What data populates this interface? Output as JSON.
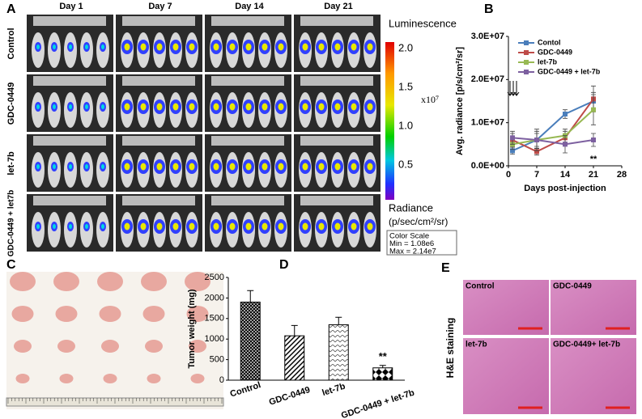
{
  "panel_a": {
    "label": "A",
    "columns": [
      "Day 1",
      "Day 7",
      "Day 14",
      "Day 21"
    ],
    "rows": [
      "Control",
      "GDC-0449",
      "let-7b",
      "GDC-0449 + let7b"
    ],
    "colorbar_title": "Luminescence",
    "colorbar_ticks": [
      "2.0",
      "1.5",
      "1.0",
      "0.5"
    ],
    "multiplier": "x10⁷",
    "unit_title": "Radiance",
    "unit": "(p/sec/cm²/sr)",
    "scale": [
      "Color Scale",
      "Min = 1.08e6",
      "Max = 2.14e7"
    ]
  },
  "panel_c": {
    "label": "C"
  },
  "panel_e": {
    "label": "E",
    "side_label": "H&E staining",
    "images": [
      "Control",
      "GDC-0449",
      "let-7b",
      "GDC-0449+ let-7b"
    ]
  },
  "chart_data": [
    {
      "type": "line",
      "label": "B",
      "x": [
        1,
        7,
        14,
        21
      ],
      "xlim": [
        0,
        28
      ],
      "xticks": [
        0,
        7,
        14,
        21,
        28
      ],
      "ylim": [
        0,
        30000000
      ],
      "yticks": [
        {
          "value": 0,
          "label": "0.0E+00"
        },
        {
          "value": 10000000,
          "label": "1.0E+07"
        },
        {
          "value": 20000000,
          "label": "2.0E+07"
        },
        {
          "value": 30000000,
          "label": "3.0E+07"
        }
      ],
      "xlabel": "Days post-injection",
      "ylabel": "Avg. radiance [p/s/cm²/sr]",
      "annotation": "**",
      "series": [
        {
          "name": "Contol",
          "color": "#4a7ebb",
          "values": [
            3500000,
            6000000,
            12000000,
            15000000
          ],
          "errors": [
            800000,
            1500000,
            1000000,
            2000000
          ]
        },
        {
          "name": "GDC-0449",
          "color": "#be4b48",
          "values": [
            6000000,
            3300000,
            6500000,
            15500000
          ],
          "errors": [
            1500000,
            800000,
            1500000,
            3000000
          ]
        },
        {
          "name": "let-7b",
          "color": "#98b954",
          "values": [
            5000000,
            6000000,
            7000000,
            13000000
          ],
          "errors": [
            1200000,
            2000000,
            1500000,
            3500000
          ]
        },
        {
          "name": "GDC-0449 + let-7b",
          "color": "#7d60a0",
          "values": [
            6500000,
            6000000,
            5000000,
            6000000
          ],
          "errors": [
            1500000,
            2500000,
            2000000,
            1500000
          ]
        }
      ]
    },
    {
      "type": "bar",
      "label": "D",
      "categories": [
        "Control",
        "GDC-0449",
        "let-7b",
        "GDC-0449 + let-7b"
      ],
      "values": [
        1900,
        1080,
        1350,
        300
      ],
      "errors": [
        280,
        250,
        180,
        60
      ],
      "color": "#000000",
      "ylim": [
        0,
        2500
      ],
      "yticks": [
        0,
        500,
        1000,
        1500,
        2000,
        2500
      ],
      "ylabel": "Tumor weight (mg)",
      "annotation": "**"
    }
  ]
}
